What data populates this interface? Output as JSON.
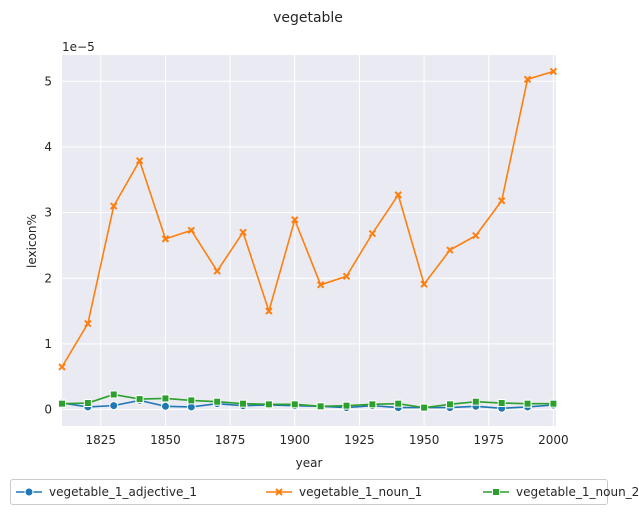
{
  "chart_data": {
    "type": "line",
    "title": "vegetable",
    "xlabel": "year",
    "ylabel": "lexicon%",
    "offset_label": "1e−5",
    "xlim": [
      1810,
      2001
    ],
    "ylim": [
      -0.25,
      5.4
    ],
    "x_ticks": [
      1825,
      1850,
      1875,
      1900,
      1925,
      1950,
      1975,
      2000
    ],
    "y_ticks": [
      0,
      1,
      2,
      3,
      4,
      5
    ],
    "grid": true,
    "legend_placement": "bottom",
    "x": [
      1810,
      1820,
      1830,
      1840,
      1850,
      1860,
      1870,
      1880,
      1890,
      1900,
      1910,
      1920,
      1930,
      1940,
      1950,
      1960,
      1970,
      1980,
      1990,
      2000
    ],
    "series": [
      {
        "name": "vegetable_1_adjective_1",
        "color": "#1f77b4",
        "marker": "circle",
        "values": [
          0.1,
          0.04,
          0.06,
          0.14,
          0.05,
          0.04,
          0.09,
          0.06,
          0.07,
          0.06,
          0.05,
          0.03,
          0.06,
          0.03,
          0.03,
          0.03,
          0.05,
          0.02,
          0.04,
          0.07
        ]
      },
      {
        "name": "vegetable_1_noun_1",
        "color": "#ff7f0e",
        "marker": "x",
        "values": [
          0.65,
          1.31,
          3.1,
          3.79,
          2.6,
          2.73,
          2.11,
          2.7,
          1.5,
          2.89,
          1.9,
          2.03,
          2.68,
          3.27,
          1.91,
          2.43,
          2.65,
          3.18,
          5.03,
          5.15
        ]
      },
      {
        "name": "vegetable_1_noun_2",
        "color": "#2ca02c",
        "marker": "square",
        "values": [
          0.09,
          0.1,
          0.23,
          0.16,
          0.17,
          0.14,
          0.12,
          0.09,
          0.08,
          0.08,
          0.05,
          0.06,
          0.08,
          0.09,
          0.03,
          0.08,
          0.12,
          0.1,
          0.09,
          0.09
        ]
      }
    ]
  }
}
